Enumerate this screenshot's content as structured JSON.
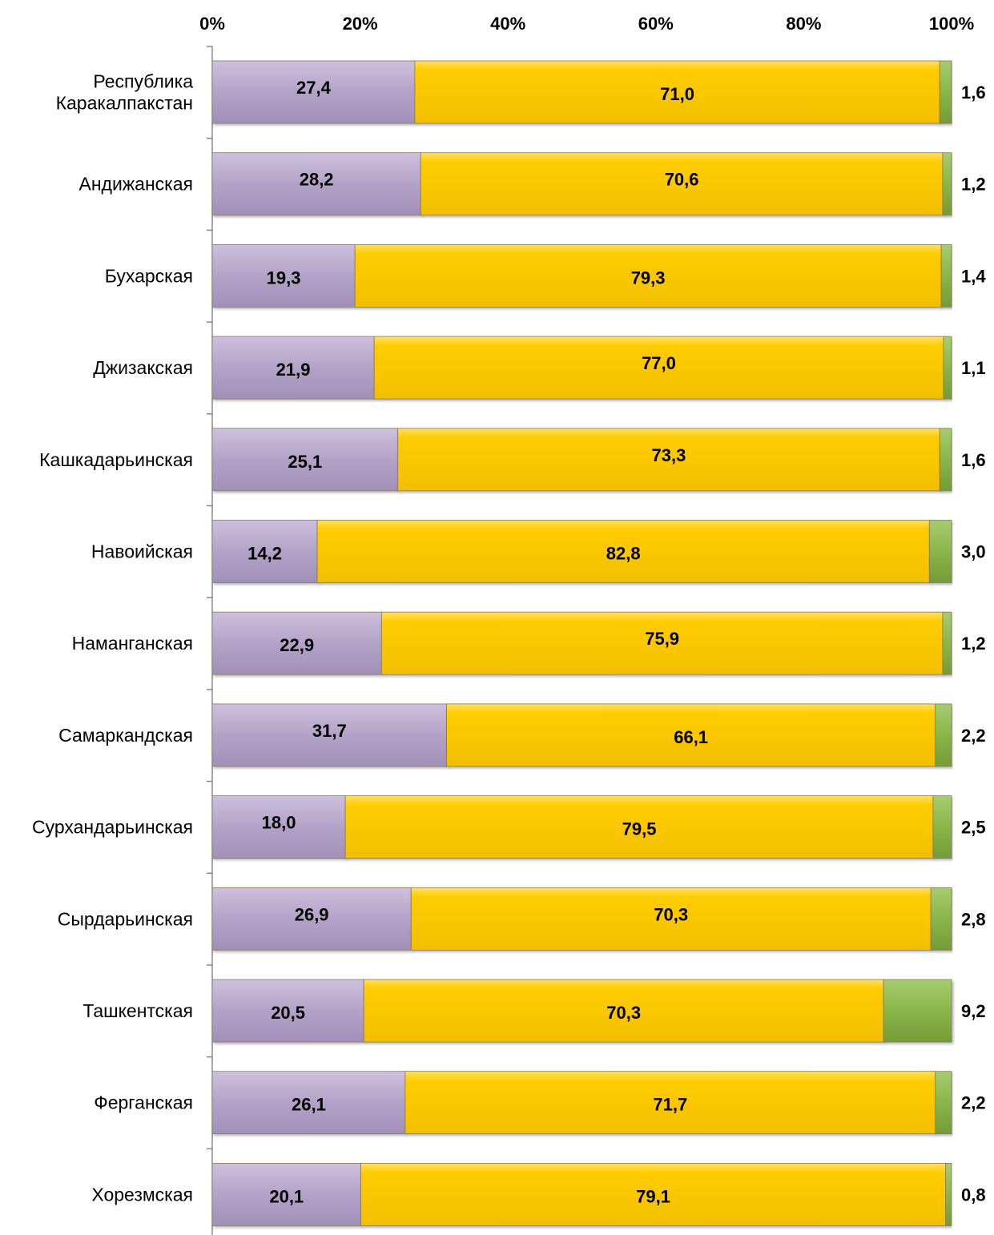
{
  "chart_data": {
    "type": "bar",
    "orientation": "horizontal",
    "stacked": "percent",
    "title": "",
    "xlabel": "",
    "ylabel": "",
    "xlim": [
      0,
      100
    ],
    "x_tick_labels": [
      "0%",
      "20%",
      "40%",
      "60%",
      "80%",
      "100%"
    ],
    "x_ticks": [
      0,
      20,
      40,
      60,
      80,
      100
    ],
    "grid": false,
    "legend": "none",
    "categories": [
      [
        "Республика",
        "Каракалпакстан"
      ],
      [
        "Андижанская"
      ],
      [
        "Бухарская"
      ],
      [
        "Джизакская"
      ],
      [
        "Кашкадарьинская"
      ],
      [
        "Навоийская"
      ],
      [
        "Наманганская"
      ],
      [
        "Самаркандская"
      ],
      [
        "Сурхандарьинская"
      ],
      [
        "Сырдарьинская"
      ],
      [
        "Ташкентская"
      ],
      [
        "Ферганская"
      ],
      [
        "Хорезмская"
      ]
    ],
    "series": [
      {
        "color": "#b3a2c7",
        "values": [
          27.4,
          28.2,
          19.3,
          21.9,
          25.1,
          14.2,
          22.9,
          31.7,
          18.0,
          26.9,
          20.5,
          26.1,
          20.1
        ],
        "labels": [
          "27,4",
          "28,2",
          "19,3",
          "21,9",
          "25,1",
          "14,2",
          "22,9",
          "31,7",
          "18,0",
          "26,9",
          "20,5",
          "26,1",
          "20,1"
        ]
      },
      {
        "color": "#ffcc00",
        "values": [
          71.0,
          70.6,
          79.3,
          77.0,
          73.3,
          82.8,
          75.9,
          66.1,
          79.5,
          70.3,
          70.3,
          71.7,
          79.1
        ],
        "labels": [
          "71,0",
          "70,6",
          "79,3",
          "77,0",
          "73,3",
          "82,8",
          "75,9",
          "66,1",
          "79,5",
          "70,3",
          "70,3",
          "71,7",
          "79,1"
        ]
      },
      {
        "color": "#8ab54a",
        "values": [
          1.6,
          1.2,
          1.4,
          1.1,
          1.6,
          3.0,
          1.2,
          2.2,
          2.5,
          2.8,
          9.2,
          2.2,
          0.8
        ],
        "labels": [
          "1,6",
          "1,2",
          "1,4",
          "1,1",
          "1,6",
          "3,0",
          "1,2",
          "2,2",
          "2,5",
          "2,8",
          "9,2",
          "2,2",
          "0,8"
        ]
      }
    ]
  }
}
